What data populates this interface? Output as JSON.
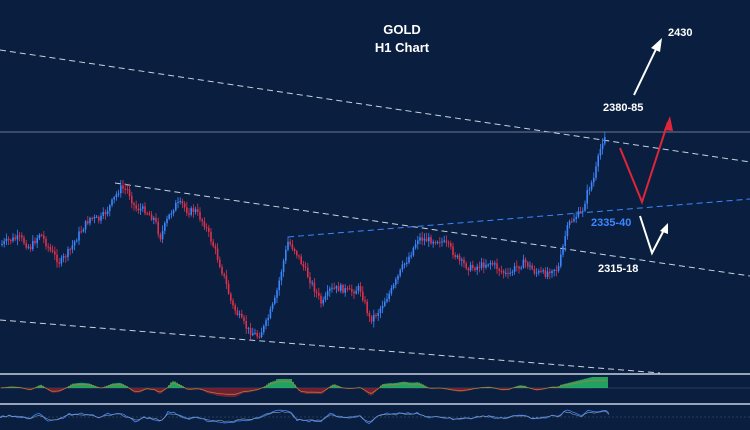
{
  "chart_data": {
    "type": "candlestick",
    "title": "GOLD",
    "subtitle": "H1 Chart",
    "grid": false,
    "colors": {
      "background": "#0a1f3f",
      "bull": "#3d86ff",
      "bear": "#e0314a",
      "trendline": "#c8d2e0",
      "support_line": "#3d86ff",
      "arrow_white": "#ffffff",
      "arrow_red": "#e0253b",
      "macd_bull": "#26c46a",
      "macd_bear": "#8a1f2e"
    },
    "annotations": [
      {
        "label": "2430",
        "color": "#ffffff"
      },
      {
        "label": "2380-85",
        "color": "#ffffff"
      },
      {
        "label": "2335-40",
        "color": "#3d86ff"
      },
      {
        "label": "2315-18",
        "color": "#ffffff"
      }
    ]
  }
}
